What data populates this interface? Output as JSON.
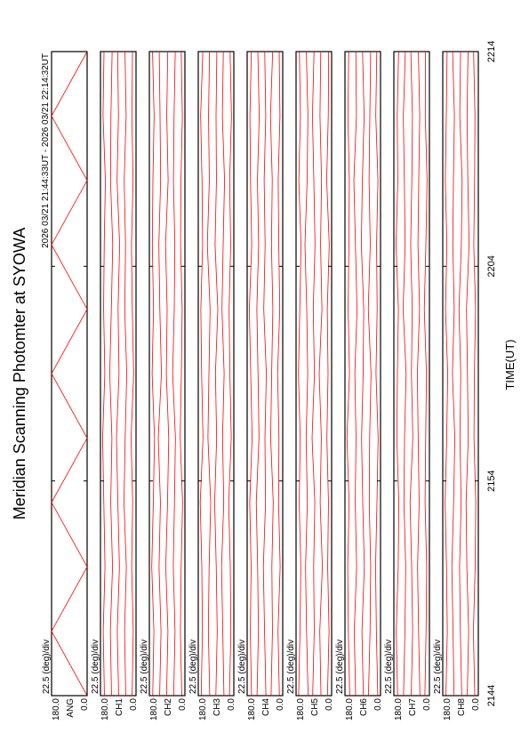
{
  "chart_data": {
    "type": "line",
    "title": "Meridian Scanning Photomter at SYOWA",
    "subtitle": "2026 03/21 21:44:33UT - 2026 03/21 22:14:32UT",
    "xlabel": "TIME(UT)",
    "xlim": [
      0,
      30
    ],
    "xticks": [
      {
        "value": 0,
        "label": "2144"
      },
      {
        "value": 10,
        "label": "2154"
      },
      {
        "value": 20,
        "label": "2204"
      },
      {
        "value": 30,
        "label": "2214"
      }
    ],
    "x": [
      0,
      3,
      6,
      9,
      12,
      15,
      18,
      21,
      24,
      27,
      30
    ],
    "panels": [
      {
        "label": "ANG",
        "scale_label": "22.5 (deg)/div",
        "ylim": [
          0,
          180
        ],
        "yticks": [
          {
            "value": 0,
            "label": "0.0"
          },
          {
            "value": 180,
            "label": "180.0"
          }
        ],
        "series": [
          {
            "color": "#ff0000",
            "values": [
              0,
              180,
              0,
              180,
              0,
              180,
              0,
              180,
              0,
              180,
              0
            ]
          }
        ]
      },
      {
        "label": "CH1",
        "scale_label": "22.5 (deg)/div",
        "ylim": [
          0,
          180
        ],
        "yticks": [
          {
            "value": 0,
            "label": "0.0"
          },
          {
            "value": 180,
            "label": "180.0"
          }
        ],
        "series": [
          {
            "color": "#ff0000",
            "values": [
              20,
              14,
              22,
              17,
              25,
              12,
              19,
              23,
              15,
              21,
              18
            ]
          },
          {
            "color": "#ff0000",
            "values": [
              52,
              58,
              49,
              61,
              55,
              47,
              57,
              53,
              60,
              50,
              56
            ]
          },
          {
            "color": "#ff0000",
            "values": [
              88,
              95,
              84,
              92,
              99,
              86,
              91,
              83,
              96,
              89,
              93
            ]
          },
          {
            "color": "#ff0000",
            "values": [
              124,
              130,
              119,
              128,
              122,
              133,
              125,
              118,
              129,
              127,
              121
            ]
          },
          {
            "color": "#ff0000",
            "values": [
              160,
              166,
              157,
              163,
              169,
              158,
              164,
              161,
              155,
              167,
              162
            ]
          }
        ]
      },
      {
        "label": "CH2",
        "scale_label": "22.5 (deg)/div",
        "ylim": [
          0,
          180
        ],
        "yticks": [
          {
            "value": 0,
            "label": "0.0"
          },
          {
            "value": 180,
            "label": "180.0"
          }
        ],
        "series": [
          {
            "color": "#ff0000",
            "values": [
              16,
              23,
              19,
              12,
              24,
              18,
              14,
              22,
              20,
              13,
              19
            ]
          },
          {
            "color": "#ff0000",
            "values": [
              57,
              50,
              59,
              53,
              48,
              62,
              54,
              51,
              58,
              55,
              49
            ]
          },
          {
            "color": "#ff0000",
            "values": [
              93,
              86,
              97,
              88,
              82,
              94,
              90,
              98,
              85,
              92,
              87
            ]
          },
          {
            "color": "#ff0000",
            "values": [
              128,
              121,
              131,
              124,
              135,
              119,
              127,
              132,
              123,
              126,
              130
            ]
          },
          {
            "color": "#ff0000",
            "values": [
              163,
              157,
              168,
              160,
              154,
              166,
              159,
              165,
              162,
              156,
              164
            ]
          }
        ]
      },
      {
        "label": "CH3",
        "scale_label": "22.5 (deg)/div",
        "ylim": [
          0,
          180
        ],
        "yticks": [
          {
            "value": 0,
            "label": "0.0"
          },
          {
            "value": 180,
            "label": "180.0"
          }
        ],
        "series": [
          {
            "color": "#ff0000",
            "values": [
              22,
              15,
              18,
              26,
              13,
              20,
              24,
              16,
              21,
              12,
              19
            ]
          },
          {
            "color": "#ff0000",
            "values": [
              50,
              56,
              62,
              51,
              57,
              49,
              60,
              54,
              47,
              58,
              53
            ]
          },
          {
            "color": "#ff0000",
            "values": [
              91,
              84,
              89,
              97,
              87,
              93,
              81,
              95,
              88,
              90,
              86
            ]
          },
          {
            "color": "#ff0000",
            "values": [
              122,
              129,
              125,
              117,
              131,
              126,
              120,
              134,
              124,
              128,
              123
            ]
          },
          {
            "color": "#ff0000",
            "values": [
              165,
              159,
              162,
              170,
              156,
              163,
              167,
              158,
              161,
              168,
              157
            ]
          }
        ]
      },
      {
        "label": "CH4",
        "scale_label": "22.5 (deg)/div",
        "ylim": [
          0,
          180
        ],
        "yticks": [
          {
            "value": 0,
            "label": "0.0"
          },
          {
            "value": 180,
            "label": "180.0"
          }
        ],
        "series": [
          {
            "color": "#ff0000",
            "values": [
              17,
              24,
              13,
              21,
              19,
              26,
              15,
              20,
              23,
              14,
              18
            ]
          },
          {
            "color": "#ff0000",
            "values": [
              59,
              52,
              55,
              48,
              61,
              56,
              50,
              57,
              53,
              62,
              51
            ]
          },
          {
            "color": "#ff0000",
            "values": [
              85,
              92,
              98,
              87,
              90,
              83,
              96,
              89,
              94,
              86,
              91
            ]
          },
          {
            "color": "#ff0000",
            "values": [
              130,
              123,
              127,
              134,
              120,
              125,
              131,
              122,
              128,
              119,
              126
            ]
          },
          {
            "color": "#ff0000",
            "values": [
              158,
              164,
              160,
              167,
              155,
              162,
              169,
              157,
              163,
              166,
              159
            ]
          }
        ]
      },
      {
        "label": "CH5",
        "scale_label": "22.5 (deg)/div",
        "ylim": [
          0,
          180
        ],
        "yticks": [
          {
            "value": 0,
            "label": "0.0"
          },
          {
            "value": 180,
            "label": "180.0"
          }
        ],
        "series": [
          {
            "color": "#ff0000",
            "values": [
              21,
              13,
              20,
              16,
              24,
              18,
              22,
              12,
              25,
              17,
              15
            ]
          },
          {
            "color": "#ff0000",
            "values": [
              54,
              60,
              47,
              58,
              52,
              63,
              49,
              56,
              51,
              59,
              55
            ]
          },
          {
            "color": "#ff0000",
            "values": [
              96,
              88,
              91,
              85,
              99,
              87,
              93,
              84,
              90,
              97,
              89
            ]
          },
          {
            "color": "#ff0000",
            "values": [
              119,
              127,
              132,
              123,
              129,
              121,
              126,
              135,
              124,
              120,
              128
            ]
          },
          {
            "color": "#ff0000",
            "values": [
              167,
              160,
              156,
              164,
              159,
              168,
              161,
              155,
              166,
              158,
              163
            ]
          }
        ]
      },
      {
        "label": "CH6",
        "scale_label": "22.5 (deg)/div",
        "ylim": [
          0,
          180
        ],
        "yticks": [
          {
            "value": 0,
            "label": "0.0"
          },
          {
            "value": 180,
            "label": "180.0"
          }
        ],
        "series": [
          {
            "color": "#ff0000",
            "values": [
              14,
              21,
              25,
              18,
              12,
              23,
              17,
              20,
              13,
              24,
              19
            ]
          },
          {
            "color": "#ff0000",
            "values": [
              61,
              53,
              50,
              57,
              55,
              48,
              62,
              52,
              58,
              54,
              50
            ]
          },
          {
            "color": "#ff0000",
            "values": [
              87,
              94,
              82,
              90,
              96,
              88,
              85,
              97,
              92,
              83,
              91
            ]
          },
          {
            "color": "#ff0000",
            "values": [
              126,
              133,
              121,
              128,
              124,
              130,
              119,
              127,
              135,
              122,
              125
            ]
          },
          {
            "color": "#ff0000",
            "values": [
              156,
              163,
              166,
              159,
              170,
              157,
              164,
              160,
              158,
              165,
              161
            ]
          }
        ]
      },
      {
        "label": "CH7",
        "scale_label": "22.5 (deg)/div",
        "ylim": [
          0,
          180
        ],
        "yticks": [
          {
            "value": 0,
            "label": "0.0"
          },
          {
            "value": 180,
            "label": "180.0"
          }
        ],
        "series": [
          {
            "color": "#ff0000",
            "values": [
              23,
              17,
              14,
              22,
              19,
              15,
              26,
              18,
              12,
              21,
              20
            ]
          },
          {
            "color": "#ff0000",
            "values": [
              48,
              55,
              60,
              52,
              57,
              61,
              50,
              58,
              54,
              49,
              56
            ]
          },
          {
            "color": "#ff0000",
            "values": [
              92,
              85,
              90,
              98,
              84,
              91,
              87,
              95,
              89,
              86,
              94
            ]
          },
          {
            "color": "#ff0000",
            "values": [
              131,
              124,
              120,
              129,
              126,
              118,
              133,
              123,
              127,
              132,
              122
            ]
          },
          {
            "color": "#ff0000",
            "values": [
              161,
              168,
              158,
              155,
              165,
              162,
              157,
              169,
              160,
              163,
              156
            ]
          }
        ]
      },
      {
        "label": "CH8",
        "scale_label": "22.5 (deg)/div",
        "ylim": [
          0,
          180
        ],
        "yticks": [
          {
            "value": 0,
            "label": "0.0"
          },
          {
            "value": 180,
            "label": "180.0"
          }
        ],
        "series": [
          {
            "color": "#ff0000",
            "values": [
              18,
              25,
              16,
              13,
              22,
              20,
              14,
              23,
              19,
              17,
              24
            ]
          },
          {
            "color": "#ff0000",
            "values": [
              56,
              49,
              58,
              62,
              51,
              55,
              60,
              47,
              53,
              57,
              52
            ]
          },
          {
            "color": "#ff0000",
            "values": [
              84,
              91,
              95,
              87,
              93,
              89,
              98,
              86,
              82,
              94,
              90
            ]
          },
          {
            "color": "#ff0000",
            "values": [
              123,
              128,
              134,
              125,
              119,
              131,
              122,
              129,
              126,
              121,
              130
            ]
          },
          {
            "color": "#ff0000",
            "values": [
              164,
              157,
              161,
              168,
              160,
              155,
              166,
              159,
              167,
              162,
              158
            ]
          }
        ]
      }
    ]
  }
}
